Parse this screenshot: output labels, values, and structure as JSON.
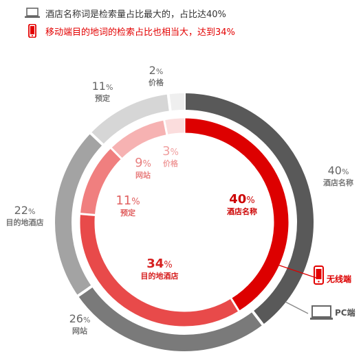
{
  "legend": {
    "pc_text": "酒店名称词是检索量占比最大的，占比达40%",
    "mobile_text": "移动端目的地词的检索占比也相当大，达到34%"
  },
  "icons": {
    "pc": "laptop-icon",
    "mobile": "phone-icon"
  },
  "colors": {
    "mobile_accent": "#e30000",
    "pc_accent": "#555555"
  },
  "chart_data": {
    "type": "donut",
    "title": "",
    "rings": [
      {
        "name": "PC端",
        "position": "outer",
        "series": [
          {
            "label": "酒店名称",
            "value": 40,
            "color": "#595959"
          },
          {
            "label": "网站",
            "value": 26,
            "color": "#7a7a7a"
          },
          {
            "label": "目的地酒店",
            "value": 22,
            "color": "#a3a3a3"
          },
          {
            "label": "预定",
            "value": 11,
            "color": "#d6d6d6"
          },
          {
            "label": "价格",
            "value": 2,
            "color": "#efefef"
          }
        ]
      },
      {
        "name": "无线端",
        "position": "inner",
        "series": [
          {
            "label": "酒店名称",
            "value": 40,
            "color": "#dd0000"
          },
          {
            "label": "目的地酒店",
            "value": 34,
            "color": "#e84a4a"
          },
          {
            "label": "预定",
            "value": 11,
            "color": "#f07f7f"
          },
          {
            "label": "网站",
            "value": 9,
            "color": "#f6b2b2"
          },
          {
            "label": "价格",
            "value": 3,
            "color": "#fbdddd"
          }
        ]
      }
    ],
    "unit": "%"
  }
}
